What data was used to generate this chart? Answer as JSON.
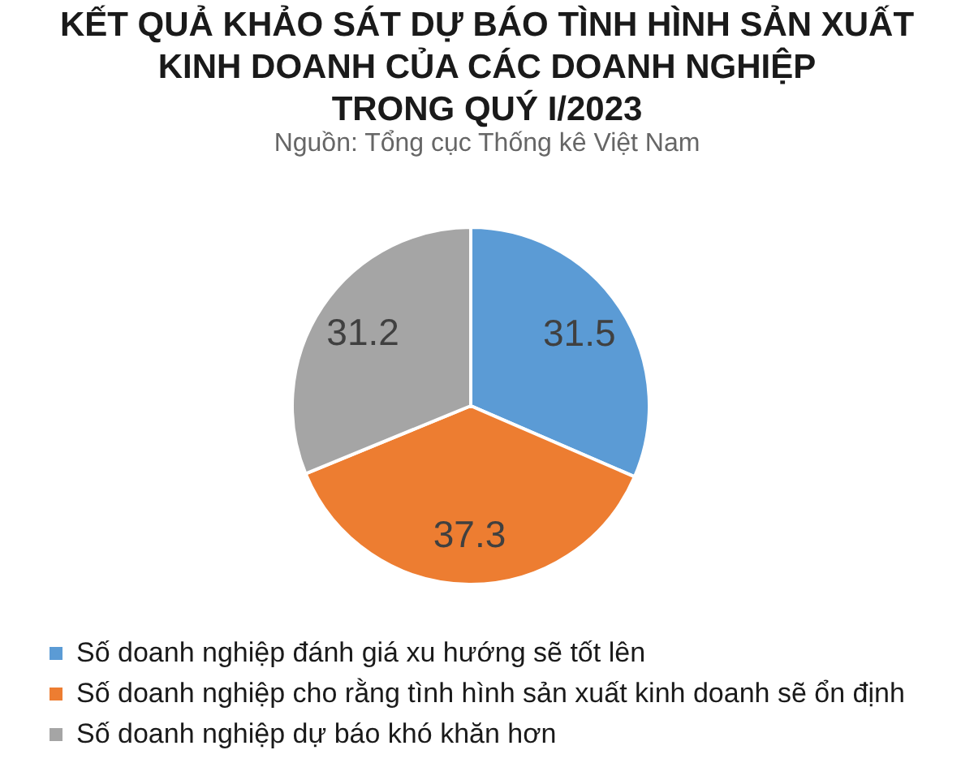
{
  "chart_data": {
    "type": "pie",
    "title": "KẾT QUẢ KHẢO SÁT DỰ BÁO TÌNH HÌNH SẢN XUẤT\nKINH DOANH CỦA CÁC DOANH NGHIỆP\nTRONG QUÝ I/2023",
    "annotations": [
      "Nguồn: Tổng cục Thống kê Việt Nam"
    ],
    "categories": [
      "Số doanh nghiệp đánh giá xu hướng sẽ tốt lên",
      "Số doanh nghiệp cho rằng tình hình sản xuất kinh doanh sẽ ổn định",
      "Số doanh nghiệp dự báo khó khăn hơn"
    ],
    "values": [
      31.5,
      37.3,
      31.2
    ],
    "colors": [
      "#5b9bd5",
      "#ed7d31",
      "#a5a5a5"
    ],
    "data_labels": true,
    "legend": "bottom"
  }
}
